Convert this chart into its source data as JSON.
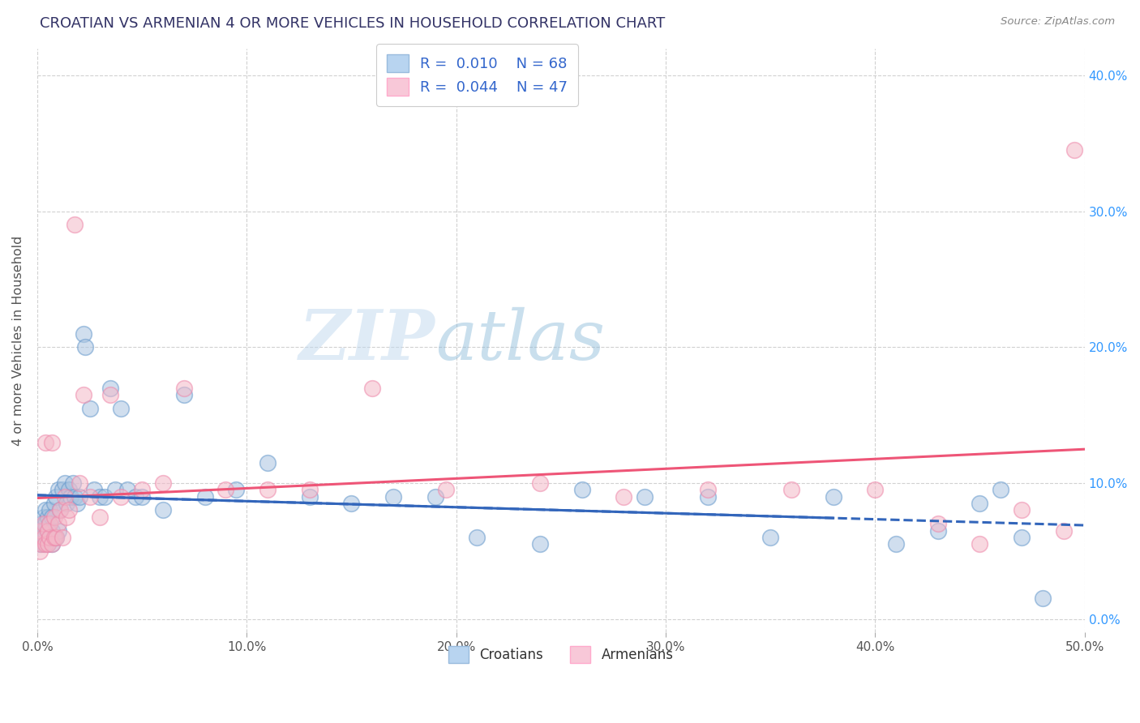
{
  "title": "CROATIAN VS ARMENIAN 4 OR MORE VEHICLES IN HOUSEHOLD CORRELATION CHART",
  "source": "Source: ZipAtlas.com",
  "ylabel": "4 or more Vehicles in Household",
  "xlim": [
    0.0,
    0.5
  ],
  "ylim": [
    -0.01,
    0.42
  ],
  "yticks": [
    0.0,
    0.1,
    0.2,
    0.3,
    0.4
  ],
  "ytick_labels_right": [
    "0.0%",
    "10.0%",
    "20.0%",
    "30.0%",
    "40.0%"
  ],
  "xticks": [
    0.0,
    0.1,
    0.2,
    0.3,
    0.4,
    0.5
  ],
  "xtick_labels": [
    "0.0%",
    "10.0%",
    "20.0%",
    "30.0%",
    "40.0%",
    "50.0%"
  ],
  "legend_r_croatian": "R =  0.010",
  "legend_n_croatian": "N = 68",
  "legend_r_armenian": "R =  0.044",
  "legend_n_armenian": "N = 47",
  "croatian_color": "#aac4e0",
  "armenian_color": "#f4b8c8",
  "croatian_edge_color": "#6699cc",
  "armenian_edge_color": "#ee88aa",
  "croatian_line_color": "#3366bb",
  "armenian_line_color": "#ee5577",
  "legend_patch_cr": "#b8d4f0",
  "legend_patch_ar": "#f8c8d8",
  "watermark_zip": "ZIP",
  "watermark_atlas": "atlas",
  "background_color": "#ffffff",
  "grid_color": "#cccccc",
  "title_color": "#333366",
  "axis_label_color": "#555555",
  "right_tick_color": "#3399ff",
  "source_color": "#888888",
  "legend_text_color": "#333333",
  "legend_value_color": "#3366cc",
  "cr_x": [
    0.001,
    0.002,
    0.002,
    0.003,
    0.003,
    0.003,
    0.004,
    0.004,
    0.004,
    0.005,
    0.005,
    0.005,
    0.006,
    0.006,
    0.006,
    0.007,
    0.007,
    0.007,
    0.008,
    0.008,
    0.009,
    0.009,
    0.01,
    0.01,
    0.011,
    0.012,
    0.013,
    0.014,
    0.015,
    0.016,
    0.017,
    0.018,
    0.019,
    0.02,
    0.022,
    0.023,
    0.025,
    0.027,
    0.03,
    0.032,
    0.035,
    0.037,
    0.04,
    0.043,
    0.047,
    0.05,
    0.06,
    0.07,
    0.08,
    0.095,
    0.11,
    0.13,
    0.15,
    0.17,
    0.19,
    0.21,
    0.24,
    0.26,
    0.29,
    0.32,
    0.35,
    0.38,
    0.41,
    0.43,
    0.45,
    0.46,
    0.47,
    0.48
  ],
  "cr_y": [
    0.055,
    0.06,
    0.07,
    0.055,
    0.065,
    0.075,
    0.06,
    0.07,
    0.08,
    0.055,
    0.065,
    0.075,
    0.06,
    0.07,
    0.08,
    0.055,
    0.065,
    0.075,
    0.06,
    0.085,
    0.06,
    0.09,
    0.065,
    0.095,
    0.08,
    0.095,
    0.1,
    0.085,
    0.095,
    0.09,
    0.1,
    0.09,
    0.085,
    0.09,
    0.21,
    0.2,
    0.155,
    0.095,
    0.09,
    0.09,
    0.17,
    0.095,
    0.155,
    0.095,
    0.09,
    0.09,
    0.08,
    0.165,
    0.09,
    0.095,
    0.115,
    0.09,
    0.085,
    0.09,
    0.09,
    0.06,
    0.055,
    0.095,
    0.09,
    0.09,
    0.06,
    0.09,
    0.055,
    0.065,
    0.085,
    0.095,
    0.06,
    0.015
  ],
  "ar_x": [
    0.001,
    0.002,
    0.002,
    0.003,
    0.003,
    0.004,
    0.004,
    0.005,
    0.005,
    0.006,
    0.006,
    0.007,
    0.007,
    0.008,
    0.008,
    0.009,
    0.01,
    0.011,
    0.012,
    0.013,
    0.014,
    0.015,
    0.018,
    0.02,
    0.022,
    0.025,
    0.03,
    0.035,
    0.04,
    0.05,
    0.06,
    0.07,
    0.09,
    0.11,
    0.13,
    0.16,
    0.195,
    0.24,
    0.28,
    0.32,
    0.36,
    0.4,
    0.43,
    0.45,
    0.47,
    0.49,
    0.495
  ],
  "ar_y": [
    0.05,
    0.055,
    0.065,
    0.06,
    0.07,
    0.055,
    0.13,
    0.055,
    0.065,
    0.06,
    0.07,
    0.055,
    0.13,
    0.06,
    0.075,
    0.06,
    0.07,
    0.08,
    0.06,
    0.09,
    0.075,
    0.08,
    0.29,
    0.1,
    0.165,
    0.09,
    0.075,
    0.165,
    0.09,
    0.095,
    0.1,
    0.17,
    0.095,
    0.095,
    0.095,
    0.17,
    0.095,
    0.1,
    0.09,
    0.095,
    0.095,
    0.095,
    0.07,
    0.055,
    0.08,
    0.065,
    0.345
  ]
}
